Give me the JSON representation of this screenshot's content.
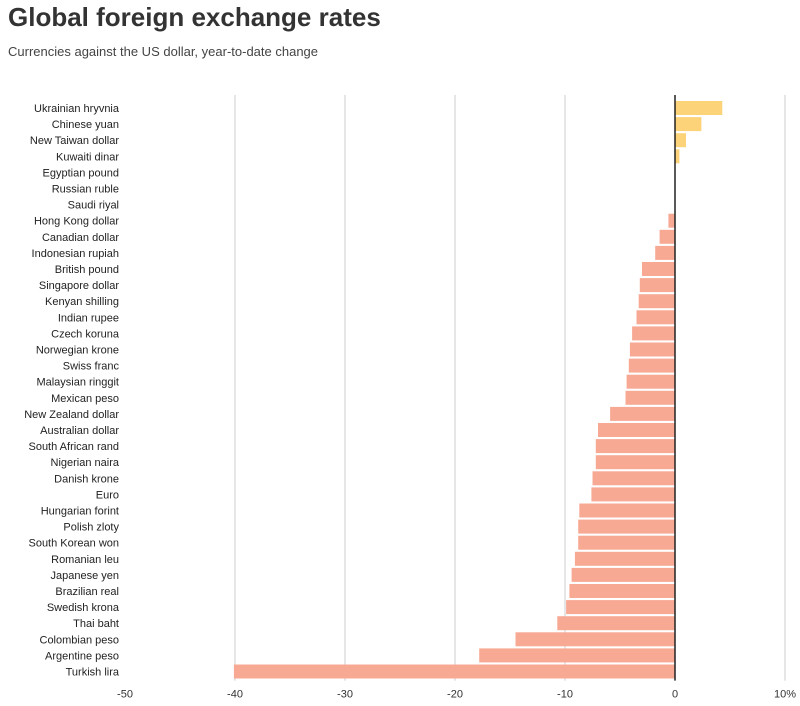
{
  "chart_data": {
    "type": "bar",
    "orientation": "horizontal",
    "title": "Global foreign exchange rates",
    "subtitle": "Currencies against the US dollar, year-to-date change",
    "categories": [
      "Ukrainian hryvnia",
      "Chinese yuan",
      "New Taiwan dollar",
      "Kuwaiti dinar",
      "Egyptian pound",
      "Russian ruble",
      "Saudi riyal",
      "Hong Kong dollar",
      "Canadian dollar",
      "Indonesian rupiah",
      "British pound",
      "Singapore dollar",
      "Kenyan shilling",
      "Indian rupee",
      "Czech koruna",
      "Norwegian krone",
      "Swiss franc",
      "Malaysian ringgit",
      "Mexican peso",
      "New Zealand dollar",
      "Australian dollar",
      "South African rand",
      "Nigerian naira",
      "Danish krone",
      "Euro",
      "Hungarian forint",
      "Polish zloty",
      "South Korean won",
      "Romanian leu",
      "Japanese yen",
      "Brazilian real",
      "Swedish krona",
      "Thai baht",
      "Colombian peso",
      "Argentine peso",
      "Turkish lira"
    ],
    "values": [
      4.3,
      2.4,
      1.0,
      0.4,
      0,
      0,
      0,
      -0.6,
      -1.4,
      -1.8,
      -3.0,
      -3.2,
      -3.3,
      -3.5,
      -3.9,
      -4.1,
      -4.2,
      -4.4,
      -4.5,
      -5.9,
      -7.0,
      -7.2,
      -7.2,
      -7.5,
      -7.6,
      -8.7,
      -8.8,
      -8.8,
      -9.1,
      -9.4,
      -9.6,
      -9.9,
      -10.7,
      -14.5,
      -17.8,
      -40.1
    ],
    "xlim": [
      -50,
      10
    ],
    "xticks": [
      "-50",
      "-40",
      "-30",
      "-20",
      "-10",
      "0",
      "10%"
    ],
    "xtick_values": [
      -50,
      -40,
      -30,
      -20,
      -10,
      0,
      10
    ],
    "colors": {
      "positive": "#fdd37a",
      "negative": "#f7a994",
      "zero_line": "#222222",
      "grid": "#cccccc"
    },
    "grid": true,
    "legend": "none"
  }
}
